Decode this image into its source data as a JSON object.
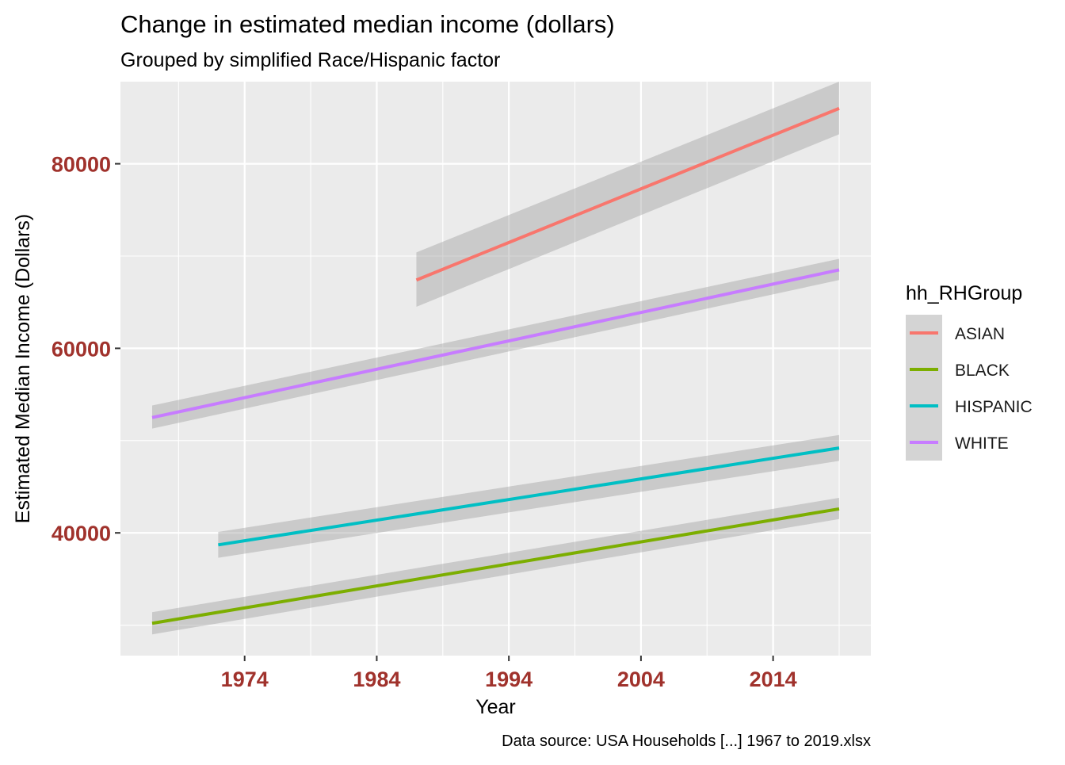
{
  "chart_data": {
    "type": "line",
    "title": "Change in estimated median income (dollars)",
    "subtitle": "Grouped by simplified Race/Hispanic factor",
    "xlabel": "Year",
    "ylabel": "Estimated Median Income (Dollars)",
    "caption": "Data source: USA Households [...] 1967 to 2019.xlsx",
    "xlim": [
      1964.6,
      2021.4
    ],
    "ylim": [
      26700,
      88900
    ],
    "x_ticks": [
      1974,
      1984,
      1994,
      2004,
      2014
    ],
    "x_tick_labels": [
      "1974",
      "1984",
      "1994",
      "2004",
      "2014"
    ],
    "y_ticks": [
      40000,
      60000,
      80000
    ],
    "y_tick_labels": [
      "40000",
      "60000",
      "80000"
    ],
    "grid": true,
    "legend": {
      "title": "hh_RHGroup",
      "position": "right"
    },
    "series": [
      {
        "name": "ASIAN",
        "color": "#F8766D",
        "x": [
          1987,
          2019
        ],
        "y": [
          67400,
          86000
        ],
        "lower": [
          64500,
          83200
        ],
        "upper": [
          70400,
          88900
        ]
      },
      {
        "name": "BLACK",
        "color": "#7CAE00",
        "x": [
          1967,
          2019
        ],
        "y": [
          30200,
          42600
        ],
        "lower": [
          29000,
          41500
        ],
        "upper": [
          31400,
          43800
        ]
      },
      {
        "name": "HISPANIC",
        "color": "#00BFC4",
        "x": [
          1972,
          2019
        ],
        "y": [
          38700,
          49200
        ],
        "lower": [
          37300,
          47800
        ],
        "upper": [
          40100,
          50600
        ]
      },
      {
        "name": "WHITE",
        "color": "#C77CFF",
        "x": [
          1967,
          2019
        ],
        "y": [
          52500,
          68500
        ],
        "lower": [
          51300,
          67400
        ],
        "upper": [
          53800,
          69700
        ]
      }
    ]
  }
}
